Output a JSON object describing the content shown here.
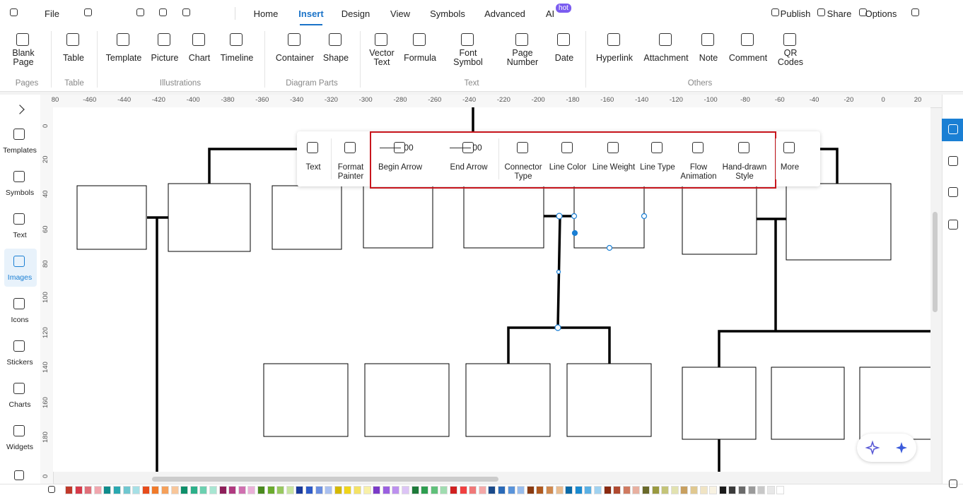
{
  "menu": {
    "file": "File",
    "tabs": [
      "Home",
      "Insert",
      "Design",
      "View",
      "Symbols",
      "Advanced",
      "AI"
    ],
    "badge": "hot",
    "actions": [
      "Publish",
      "Share",
      "Options"
    ]
  },
  "ribbon": {
    "groups": [
      {
        "label": "Pages",
        "buttons": [
          "Blank Page"
        ]
      },
      {
        "label": "Table",
        "buttons": [
          "Table"
        ]
      },
      {
        "label": "Illustrations",
        "buttons": [
          "Template",
          "Picture",
          "Chart",
          "Timeline"
        ]
      },
      {
        "label": "Diagram Parts",
        "buttons": [
          "Container",
          "Shape"
        ]
      },
      {
        "label": "Text",
        "buttons": [
          "Vector Text",
          "Formula",
          "Font Symbol",
          "Page Number",
          "Date"
        ]
      },
      {
        "label": "Others",
        "buttons": [
          "Hyperlink",
          "Attachment",
          "Note",
          "Comment",
          "QR Codes"
        ]
      }
    ]
  },
  "sidebar": [
    "Templates",
    "Symbols",
    "Text",
    "Images",
    "Icons",
    "Stickers",
    "Charts",
    "Widgets"
  ],
  "toolbar": {
    "buttons": [
      "Text",
      "Format Painter",
      "Begin Arrow",
      "End Arrow",
      "Connector Type",
      "Line Color",
      "Line Weight",
      "Line Type",
      "Flow Animation",
      "Hand-drawn Style",
      "More"
    ],
    "arrow_values": [
      "00",
      "00"
    ]
  },
  "rulers": {
    "top": [
      80,
      -460,
      -440,
      -420,
      -400,
      -380,
      -360,
      -340,
      -320,
      -300,
      -280,
      -260,
      -240,
      -220,
      -200,
      -180,
      -160,
      -140,
      -120,
      -100,
      -80,
      -60,
      -40,
      -20,
      0,
      20
    ],
    "left": [
      0,
      20,
      40,
      60,
      80,
      100,
      120,
      140,
      160,
      180,
      0
    ]
  }
}
